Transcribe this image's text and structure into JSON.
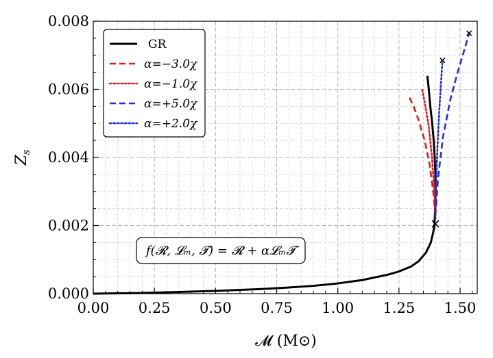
{
  "chart_data": {
    "type": "line",
    "title": "",
    "xlabel": "𝓜 (M⊙)",
    "ylabel": "Z_s",
    "xlim": [
      0.0,
      1.57
    ],
    "ylim": [
      0.0,
      0.008
    ],
    "grid": true,
    "legend_position": "top-left",
    "x_ticks": [
      "0.00",
      "0.25",
      "0.50",
      "0.75",
      "1.00",
      "1.25",
      "1.50"
    ],
    "y_ticks": [
      "0.000",
      "0.002",
      "0.004",
      "0.006",
      "0.008"
    ],
    "x_tick_values": [
      0.0,
      0.25,
      0.5,
      0.75,
      1.0,
      1.25,
      1.5
    ],
    "y_tick_values": [
      0.0,
      0.002,
      0.004,
      0.006,
      0.008
    ],
    "annotation": "f(𝓡, 𝓛ₘ, 𝓣) = 𝓡 + α𝓛ₘ𝓣",
    "series": [
      {
        "name": "GR",
        "color": "#000000",
        "style": "solid",
        "x": [
          0.0,
          0.1,
          0.2,
          0.3,
          0.4,
          0.5,
          0.6,
          0.7,
          0.8,
          0.9,
          1.0,
          1.1,
          1.2,
          1.25,
          1.3,
          1.33,
          1.36,
          1.38,
          1.39,
          1.395,
          1.398,
          1.399,
          1.399,
          1.396,
          1.392,
          1.386,
          1.378,
          1.372,
          1.366
        ],
        "y": [
          0.0,
          1e-05,
          2e-05,
          4e-05,
          6e-05,
          8e-05,
          0.00011,
          0.00014,
          0.00018,
          0.00023,
          0.0003,
          0.0004,
          0.00055,
          0.00065,
          0.0008,
          0.00095,
          0.0012,
          0.0015,
          0.0018,
          0.002,
          0.0025,
          0.003,
          0.0035,
          0.004,
          0.0045,
          0.005,
          0.0055,
          0.006,
          0.0064
        ]
      },
      {
        "name": "α=−3.0χ",
        "color": "#e31a1c",
        "style": "dashed",
        "x": [
          1.399,
          1.39,
          1.375,
          1.355,
          1.33,
          1.31,
          1.29
        ],
        "y": [
          0.0023,
          0.003,
          0.0038,
          0.0045,
          0.0051,
          0.0055,
          0.0058
        ]
      },
      {
        "name": "α=−1.0χ",
        "color": "#e31a1c",
        "style": "dotted",
        "x": [
          1.399,
          1.395,
          1.385,
          1.372,
          1.358,
          1.345
        ],
        "y": [
          0.0022,
          0.003,
          0.004,
          0.0049,
          0.0055,
          0.006
        ]
      },
      {
        "name": "α=+5.0χ",
        "color": "#1f2ee0",
        "style": "dashed",
        "x": [
          1.399,
          1.41,
          1.43,
          1.46,
          1.49,
          1.515,
          1.537
        ],
        "y": [
          0.0023,
          0.0034,
          0.0046,
          0.0057,
          0.0065,
          0.0071,
          0.00765
        ]
      },
      {
        "name": "α=+2.0χ",
        "color": "#1f2ee0",
        "style": "dotted",
        "x": [
          1.399,
          1.402,
          1.408,
          1.415,
          1.422,
          1.428
        ],
        "y": [
          0.0022,
          0.0033,
          0.0044,
          0.0054,
          0.0062,
          0.00685
        ]
      }
    ],
    "markers": [
      {
        "label": "x",
        "x": 1.399,
        "y": 0.00205
      },
      {
        "label": "x",
        "x": 1.428,
        "y": 0.00685
      },
      {
        "label": "x",
        "x": 1.537,
        "y": 0.00765
      }
    ]
  }
}
